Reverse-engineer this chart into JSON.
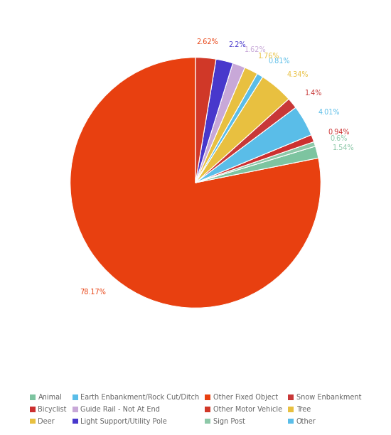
{
  "labels": [
    "Other Fixed Object",
    "Animal",
    "Sign Post",
    "Bicyclist",
    "Earth Enbankment/Rock Cut/Ditch",
    "Snow Enbankment",
    "Tree",
    "Other",
    "Deer",
    "Guide Rail - Not At End",
    "Light Support/Utility Pole",
    "Other Motor Vehicle"
  ],
  "values": [
    78.17,
    1.54,
    0.6,
    0.94,
    4.01,
    1.4,
    4.34,
    0.81,
    1.76,
    1.62,
    2.2,
    2.62
  ],
  "slice_colors": [
    "#E84010",
    "#7DC4A0",
    "#8DC8A8",
    "#CC3030",
    "#5ABDE8",
    "#C83838",
    "#E8C040",
    "#5ABDE8",
    "#E8C040",
    "#C8A8D8",
    "#4838CC",
    "#D03828"
  ],
  "pct_label_colors": [
    "#E84010",
    "#8DC8A8",
    "#8DC8A8",
    "#CC3030",
    "#5ABDE8",
    "#C83838",
    "#E8C040",
    "#5ABDE8",
    "#E8C040",
    "#C8A8D8",
    "#4838CC",
    "#E84010"
  ],
  "legend_labels": [
    "Animal",
    "Bicyclist",
    "Deer",
    "Earth Enbankment/Rock Cut/Ditch",
    "Guide Rail - Not At End",
    "Light Support/Utility Pole",
    "Other Fixed Object",
    "Other Motor Vehicle",
    "Sign Post",
    "Snow Enbankment",
    "Tree",
    "Other"
  ],
  "legend_colors": [
    "#7DC4A0",
    "#CC3030",
    "#E8C040",
    "#5ABDE8",
    "#C8A8D8",
    "#4838CC",
    "#E84010",
    "#D03828",
    "#8DC8A8",
    "#C83838",
    "#E8C040",
    "#5ABDE8"
  ],
  "background_color": "#FFFFFF",
  "startangle": 90
}
